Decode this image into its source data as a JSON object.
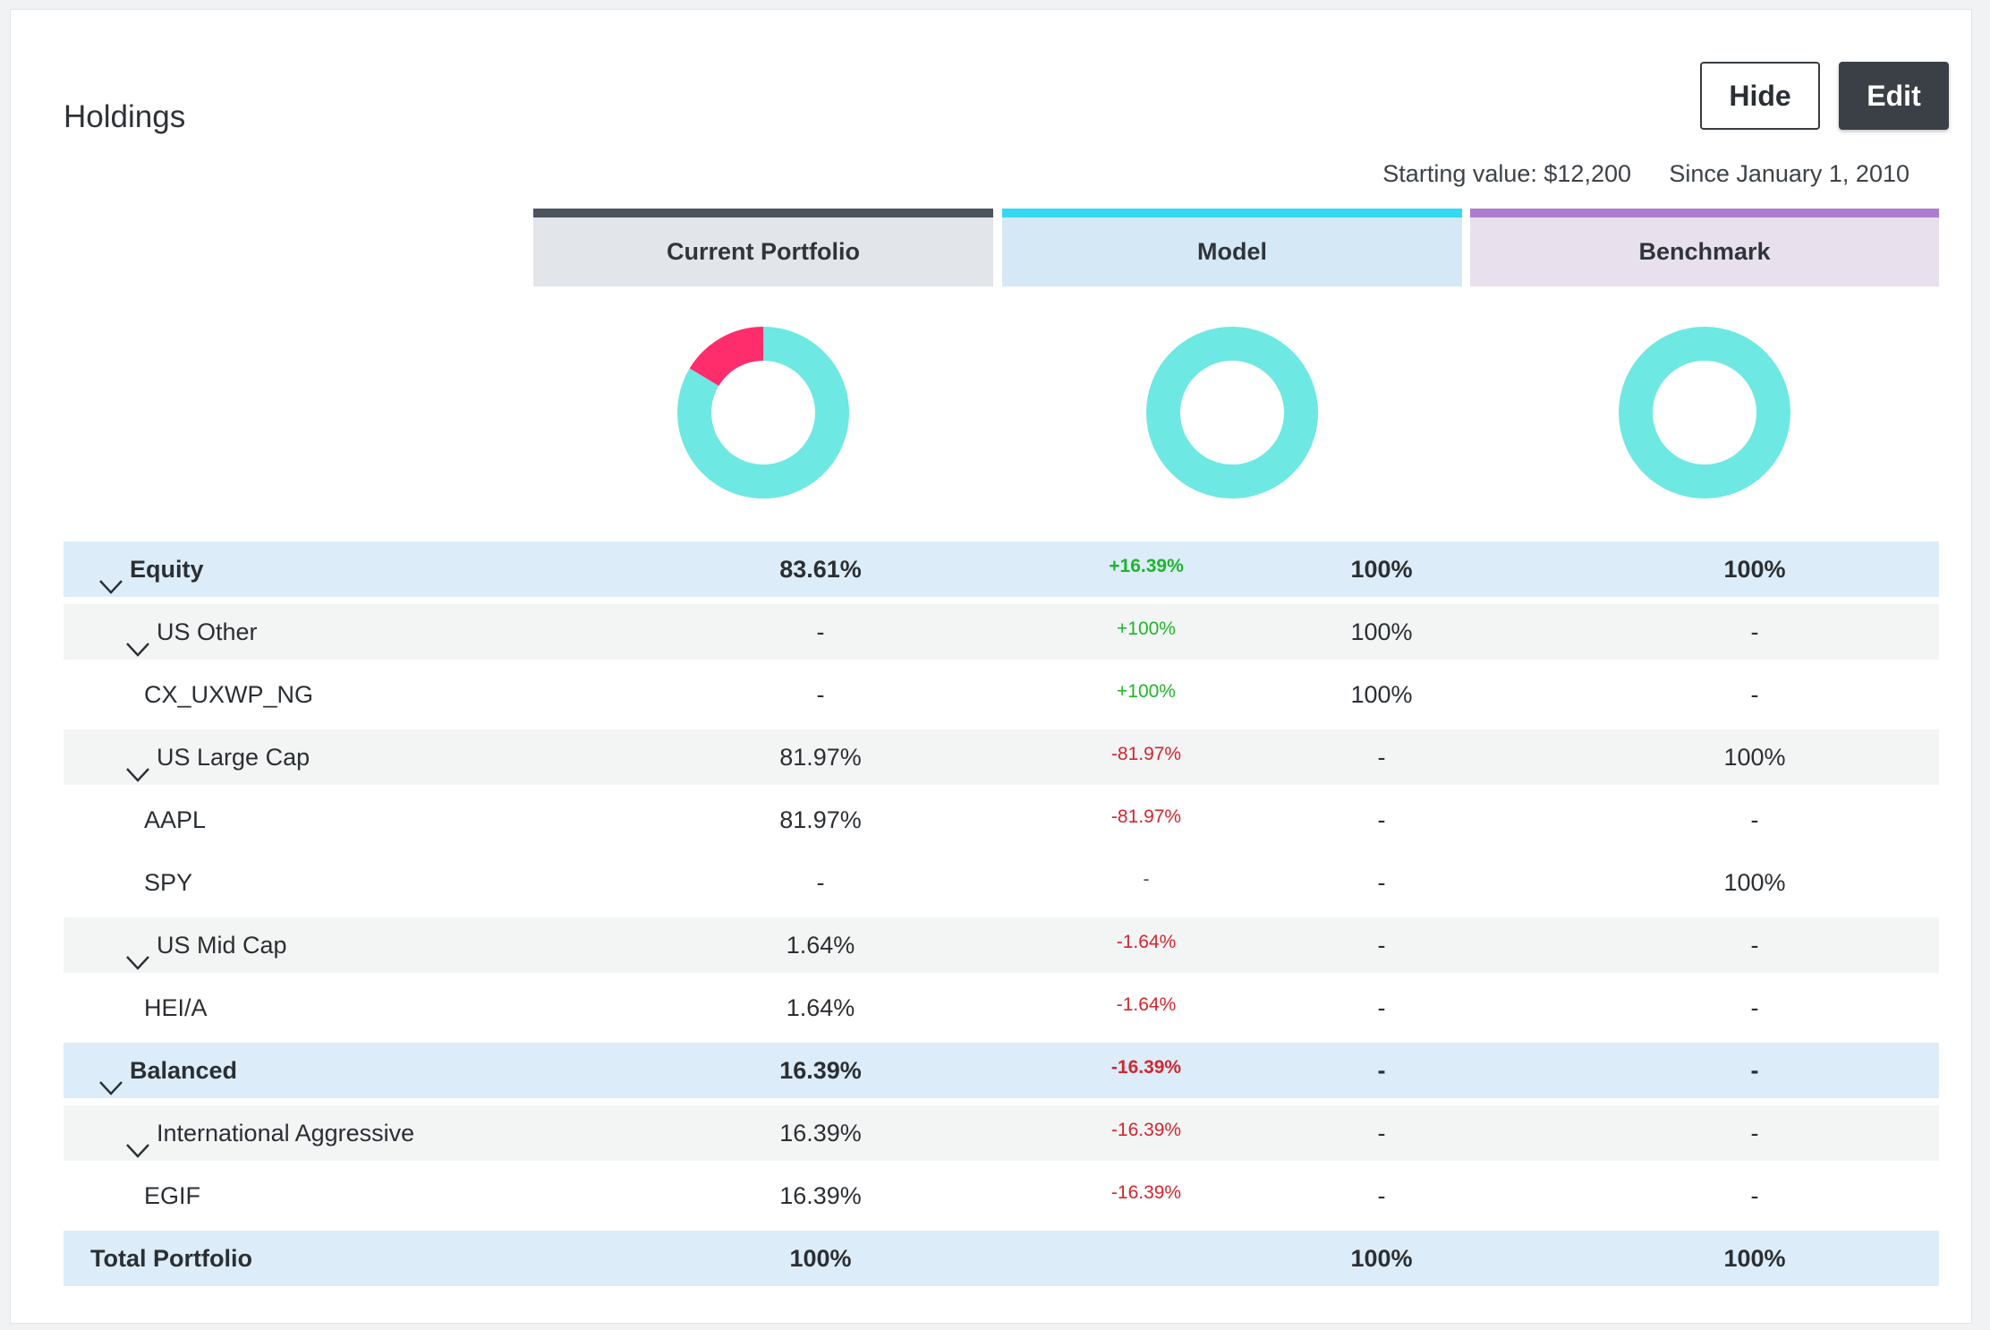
{
  "header": {
    "title": "Holdings",
    "hide_label": "Hide",
    "edit_label": "Edit",
    "starting_value": "Starting value: $12,200",
    "since": "Since January 1, 2010"
  },
  "columns": {
    "current": "Current Portfolio",
    "model": "Model",
    "benchmark": "Benchmark"
  },
  "colors": {
    "current_accent": "#4c555e",
    "model_accent": "#34d9f0",
    "benchmark_accent": "#ad7dd0",
    "donut_primary": "#6ee8e3",
    "donut_secondary": "#ff2d6c",
    "positive": "#1fb52a",
    "negative": "#d3262f"
  },
  "chart_data": [
    {
      "type": "pie",
      "name": "Current Portfolio",
      "values": [
        83.61,
        16.39
      ],
      "categories": [
        "Equity",
        "Balanced"
      ],
      "colors": [
        "#6ee8e3",
        "#ff2d6c"
      ]
    },
    {
      "type": "pie",
      "name": "Model",
      "values": [
        100
      ],
      "categories": [
        "Equity"
      ],
      "colors": [
        "#6ee8e3"
      ]
    },
    {
      "type": "pie",
      "name": "Benchmark",
      "values": [
        100
      ],
      "categories": [
        "Equity"
      ],
      "colors": [
        "#6ee8e3"
      ]
    }
  ],
  "rows": [
    {
      "level": 0,
      "name": "Equity",
      "current": "83.61%",
      "diff": "+16.39%",
      "diff_sign": "pos",
      "model": "100%",
      "benchmark": "100%",
      "expanded": true
    },
    {
      "level": 1,
      "name": "US Other",
      "current": "-",
      "diff": "+100%",
      "diff_sign": "pos",
      "model": "100%",
      "benchmark": "-",
      "expanded": true
    },
    {
      "level": 2,
      "name": "CX_UXWP_NG",
      "current": "-",
      "diff": "+100%",
      "diff_sign": "pos",
      "model": "100%",
      "benchmark": "-"
    },
    {
      "level": 1,
      "name": "US Large Cap",
      "current": "81.97%",
      "diff": "-81.97%",
      "diff_sign": "neg",
      "model": "-",
      "benchmark": "100%",
      "expanded": true
    },
    {
      "level": 2,
      "name": "AAPL",
      "current": "81.97%",
      "diff": "-81.97%",
      "diff_sign": "neg",
      "model": "-",
      "benchmark": "-"
    },
    {
      "level": 2,
      "name": "SPY",
      "current": "-",
      "diff": "-",
      "diff_sign": "neu",
      "model": "-",
      "benchmark": "100%"
    },
    {
      "level": 1,
      "name": "US Mid Cap",
      "current": "1.64%",
      "diff": "-1.64%",
      "diff_sign": "neg",
      "model": "-",
      "benchmark": "-",
      "expanded": true
    },
    {
      "level": 2,
      "name": "HEI/A",
      "current": "1.64%",
      "diff": "-1.64%",
      "diff_sign": "neg",
      "model": "-",
      "benchmark": "-"
    },
    {
      "level": 0,
      "name": "Balanced",
      "current": "16.39%",
      "diff": "-16.39%",
      "diff_sign": "neg",
      "model": "-",
      "benchmark": "-",
      "expanded": true
    },
    {
      "level": 1,
      "name": "International Aggressive",
      "current": "16.39%",
      "diff": "-16.39%",
      "diff_sign": "neg",
      "model": "-",
      "benchmark": "-",
      "expanded": true
    },
    {
      "level": 2,
      "name": "EGIF",
      "current": "16.39%",
      "diff": "-16.39%",
      "diff_sign": "neg",
      "model": "-",
      "benchmark": "-"
    }
  ],
  "total": {
    "name": "Total Portfolio",
    "current": "100%",
    "diff": "",
    "model": "100%",
    "benchmark": "100%"
  }
}
